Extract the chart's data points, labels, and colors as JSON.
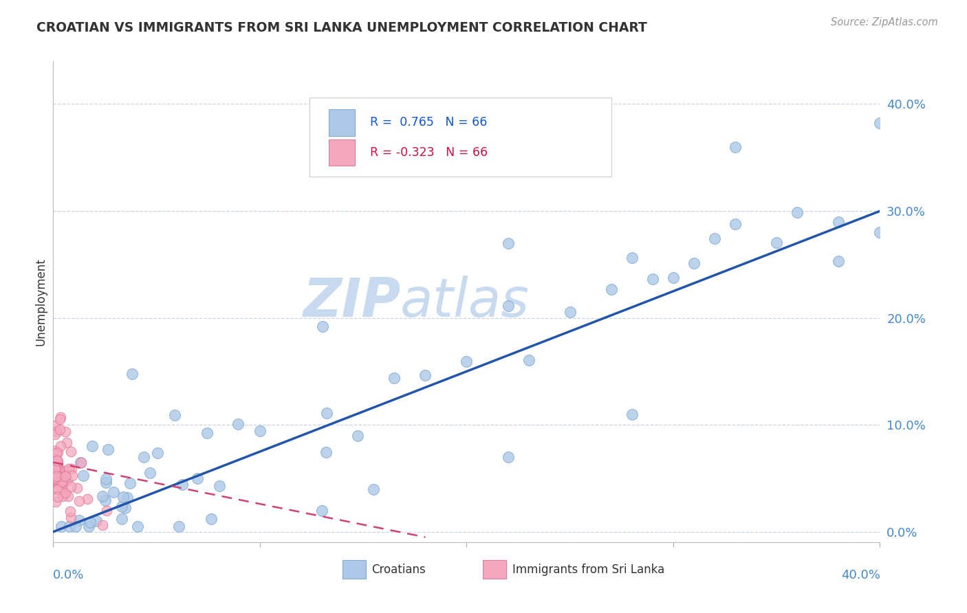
{
  "title": "CROATIAN VS IMMIGRANTS FROM SRI LANKA UNEMPLOYMENT CORRELATION CHART",
  "source": "Source: ZipAtlas.com",
  "ylabel": "Unemployment",
  "r_croatian": 0.765,
  "r_srilanka": -0.323,
  "n": 66,
  "blue_color": "#adc8e8",
  "blue_edge": "#80aad4",
  "pink_color": "#f4a8be",
  "pink_edge": "#e07898",
  "blue_line_color": "#2255aa",
  "pink_line_color": "#d04070",
  "legend_r1_color": "#1155cc",
  "legend_r2_color": "#cc1144",
  "text_color": "#333333",
  "source_color": "#999999",
  "axis_label_color": "#4488cc",
  "grid_color": "#c8d4e4",
  "bg_color": "#ffffff",
  "watermark_zip_color": "#c8daf0",
  "watermark_atlas_color": "#c8daf0",
  "xrange": [
    0.0,
    0.4
  ],
  "yrange": [
    -0.01,
    0.44
  ],
  "ytick_vals": [
    0.0,
    0.1,
    0.2,
    0.3,
    0.4
  ],
  "ytick_labels": [
    "0.0%",
    "10.0%",
    "20.0%",
    "30.0%",
    "40.0%"
  ],
  "xtick_vals": [
    0.0,
    0.1,
    0.2,
    0.3,
    0.4
  ],
  "blue_line_x": [
    0.0,
    0.4
  ],
  "blue_line_y": [
    0.0,
    0.3
  ],
  "pink_line_x": [
    0.0,
    0.18
  ],
  "pink_line_y": [
    0.065,
    -0.005
  ]
}
